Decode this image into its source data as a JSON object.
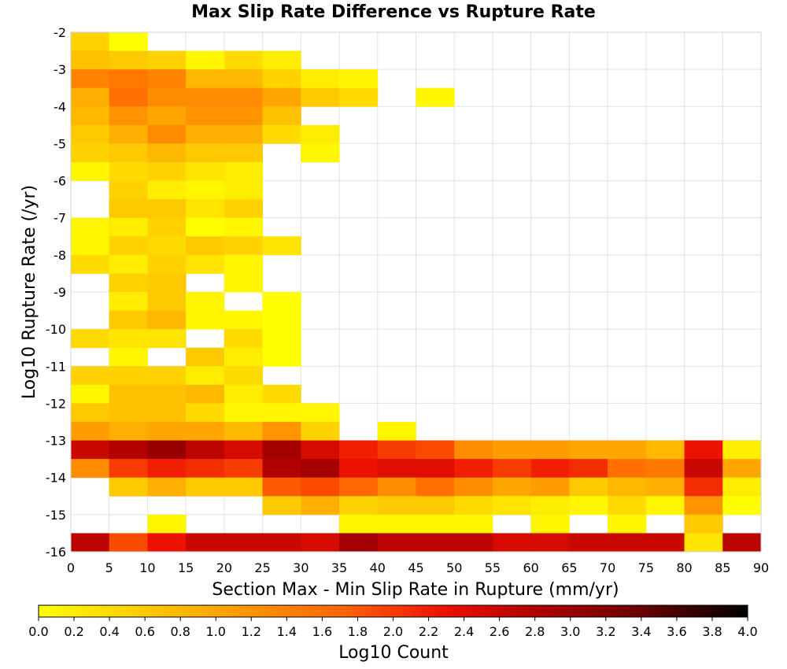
{
  "chart_data": {
    "type": "heatmap",
    "title": "Max Slip Rate Difference vs Rupture Rate",
    "xlabel": "Section Max - Min Slip Rate in Rupture (mm/yr)",
    "ylabel": "Log10 Rupture Rate (/yr)",
    "xlim": [
      0,
      90
    ],
    "ylim": [
      -16,
      -2
    ],
    "x_bin_width": 5,
    "y_bin_height": 0.5,
    "x_ticks": [
      "0",
      "5",
      "10",
      "15",
      "20",
      "25",
      "30",
      "35",
      "40",
      "45",
      "50",
      "55",
      "60",
      "65",
      "70",
      "75",
      "80",
      "85",
      "90"
    ],
    "y_ticks": [
      "-2",
      "-3",
      "-4",
      "-5",
      "-6",
      "-7",
      "-8",
      "-9",
      "-10",
      "-11",
      "-12",
      "-13",
      "-14",
      "-15",
      "-16"
    ],
    "grid": true,
    "colorbar": {
      "label": "Log10 Count",
      "range": [
        0.0,
        4.0
      ],
      "ticks": [
        "0.0",
        "0.2",
        "0.4",
        "0.6",
        "0.8",
        "1.0",
        "1.2",
        "1.4",
        "1.6",
        "1.8",
        "2.0",
        "2.2",
        "2.4",
        "2.6",
        "2.8",
        "3.0",
        "3.2",
        "3.4",
        "3.6",
        "3.8",
        "4.0"
      ],
      "colors": [
        "#ffff00",
        "#ffcc00",
        "#ff9900",
        "#ff6600",
        "#ee1100",
        "#aa0000",
        "#660000",
        "#000000"
      ],
      "placement": "bottom"
    },
    "cells": [
      {
        "x": 0,
        "y": -2.5,
        "v": 0.5
      },
      {
        "x": 0,
        "y": -3,
        "v": 0.7
      },
      {
        "x": 0,
        "y": -3.5,
        "v": 1.4
      },
      {
        "x": 0,
        "y": -4,
        "v": 0.9
      },
      {
        "x": 0,
        "y": -4.5,
        "v": 0.8
      },
      {
        "x": 0,
        "y": -5,
        "v": 0.6
      },
      {
        "x": 0,
        "y": -5.5,
        "v": 0.5
      },
      {
        "x": 0,
        "y": -6,
        "v": 0.1
      },
      {
        "x": 0,
        "y": -7.5,
        "v": 0.1
      },
      {
        "x": 0,
        "y": -8,
        "v": 0.1
      },
      {
        "x": 0,
        "y": -8.5,
        "v": 0.4
      },
      {
        "x": 0,
        "y": -10.5,
        "v": 0.4
      },
      {
        "x": 0,
        "y": -11.5,
        "v": 0.5
      },
      {
        "x": 0,
        "y": -12,
        "v": 0.1
      },
      {
        "x": 0,
        "y": -12.5,
        "v": 0.6
      },
      {
        "x": 0,
        "y": -13,
        "v": 1.1
      },
      {
        "x": 0,
        "y": -13.5,
        "v": 2.6
      },
      {
        "x": 0,
        "y": -14,
        "v": 1.3
      },
      {
        "x": 0,
        "y": -16,
        "v": 2.7
      },
      {
        "x": 5,
        "y": -2.5,
        "v": 0.0
      },
      {
        "x": 5,
        "y": -3,
        "v": 0.6
      },
      {
        "x": 5,
        "y": -3.5,
        "v": 1.5
      },
      {
        "x": 5,
        "y": -4,
        "v": 1.6
      },
      {
        "x": 5,
        "y": -4.5,
        "v": 1.2
      },
      {
        "x": 5,
        "y": -5,
        "v": 0.9
      },
      {
        "x": 5,
        "y": -5.5,
        "v": 0.6
      },
      {
        "x": 5,
        "y": -6,
        "v": 0.4
      },
      {
        "x": 5,
        "y": -6.5,
        "v": 0.5
      },
      {
        "x": 5,
        "y": -7,
        "v": 0.6
      },
      {
        "x": 5,
        "y": -7.5,
        "v": 0.2
      },
      {
        "x": 5,
        "y": -8,
        "v": 0.5
      },
      {
        "x": 5,
        "y": -8.5,
        "v": 0.2
      },
      {
        "x": 5,
        "y": -9,
        "v": 0.5
      },
      {
        "x": 5,
        "y": -9.5,
        "v": 0.2
      },
      {
        "x": 5,
        "y": -10,
        "v": 0.6
      },
      {
        "x": 5,
        "y": -10.5,
        "v": 0.3
      },
      {
        "x": 5,
        "y": -11,
        "v": 0.1
      },
      {
        "x": 5,
        "y": -11.5,
        "v": 0.5
      },
      {
        "x": 5,
        "y": -12,
        "v": 0.7
      },
      {
        "x": 5,
        "y": -12.5,
        "v": 0.7
      },
      {
        "x": 5,
        "y": -13,
        "v": 0.9
      },
      {
        "x": 5,
        "y": -13.5,
        "v": 2.8
      },
      {
        "x": 5,
        "y": -14,
        "v": 2.0
      },
      {
        "x": 5,
        "y": -14.5,
        "v": 0.6
      },
      {
        "x": 5,
        "y": -16,
        "v": 1.9
      },
      {
        "x": 10,
        "y": -3,
        "v": 0.5
      },
      {
        "x": 10,
        "y": -3.5,
        "v": 1.4
      },
      {
        "x": 10,
        "y": -4,
        "v": 1.3
      },
      {
        "x": 10,
        "y": -4.5,
        "v": 1.0
      },
      {
        "x": 10,
        "y": -5,
        "v": 1.3
      },
      {
        "x": 10,
        "y": -5.5,
        "v": 0.8
      },
      {
        "x": 10,
        "y": -6,
        "v": 0.5
      },
      {
        "x": 10,
        "y": -6.5,
        "v": 0.2
      },
      {
        "x": 10,
        "y": -7,
        "v": 0.6
      },
      {
        "x": 10,
        "y": -7.5,
        "v": 0.5
      },
      {
        "x": 10,
        "y": -8,
        "v": 0.4
      },
      {
        "x": 10,
        "y": -8.5,
        "v": 0.5
      },
      {
        "x": 10,
        "y": -9,
        "v": 0.6
      },
      {
        "x": 10,
        "y": -9.5,
        "v": 0.6
      },
      {
        "x": 10,
        "y": -10,
        "v": 0.8
      },
      {
        "x": 10,
        "y": -10.5,
        "v": 0.3
      },
      {
        "x": 10,
        "y": -11.5,
        "v": 0.5
      },
      {
        "x": 10,
        "y": -12,
        "v": 0.7
      },
      {
        "x": 10,
        "y": -12.5,
        "v": 0.7
      },
      {
        "x": 10,
        "y": -13,
        "v": 1.0
      },
      {
        "x": 10,
        "y": -13.5,
        "v": 3.0
      },
      {
        "x": 10,
        "y": -14,
        "v": 2.2
      },
      {
        "x": 10,
        "y": -14.5,
        "v": 0.9
      },
      {
        "x": 10,
        "y": -15.5,
        "v": 0.1
      },
      {
        "x": 10,
        "y": -16,
        "v": 2.3
      },
      {
        "x": 15,
        "y": -3,
        "v": 0.1
      },
      {
        "x": 15,
        "y": -3.5,
        "v": 0.8
      },
      {
        "x": 15,
        "y": -4,
        "v": 1.3
      },
      {
        "x": 15,
        "y": -4.5,
        "v": 1.2
      },
      {
        "x": 15,
        "y": -5,
        "v": 0.9
      },
      {
        "x": 15,
        "y": -5.5,
        "v": 0.6
      },
      {
        "x": 15,
        "y": -6,
        "v": 0.3
      },
      {
        "x": 15,
        "y": -6.5,
        "v": 0.1
      },
      {
        "x": 15,
        "y": -7,
        "v": 0.3
      },
      {
        "x": 15,
        "y": -7.5,
        "v": 0.0
      },
      {
        "x": 15,
        "y": -8,
        "v": 0.6
      },
      {
        "x": 15,
        "y": -8.5,
        "v": 0.3
      },
      {
        "x": 15,
        "y": -9.5,
        "v": 0.1
      },
      {
        "x": 15,
        "y": -10,
        "v": 0.1
      },
      {
        "x": 15,
        "y": -11,
        "v": 0.6
      },
      {
        "x": 15,
        "y": -11.5,
        "v": 0.2
      },
      {
        "x": 15,
        "y": -12,
        "v": 0.8
      },
      {
        "x": 15,
        "y": -12.5,
        "v": 0.4
      },
      {
        "x": 15,
        "y": -13,
        "v": 1.0
      },
      {
        "x": 15,
        "y": -13.5,
        "v": 2.7
      },
      {
        "x": 15,
        "y": -14,
        "v": 2.1
      },
      {
        "x": 15,
        "y": -14.5,
        "v": 0.6
      },
      {
        "x": 15,
        "y": -16,
        "v": 2.6
      },
      {
        "x": 20,
        "y": -3,
        "v": 0.4
      },
      {
        "x": 20,
        "y": -3.5,
        "v": 0.8
      },
      {
        "x": 20,
        "y": -4,
        "v": 1.3
      },
      {
        "x": 20,
        "y": -4.5,
        "v": 1.2
      },
      {
        "x": 20,
        "y": -5,
        "v": 0.9
      },
      {
        "x": 20,
        "y": -5.5,
        "v": 0.6
      },
      {
        "x": 20,
        "y": -6,
        "v": 0.2
      },
      {
        "x": 20,
        "y": -6.5,
        "v": 0.2
      },
      {
        "x": 20,
        "y": -7,
        "v": 0.5
      },
      {
        "x": 20,
        "y": -7.5,
        "v": 0.1
      },
      {
        "x": 20,
        "y": -8,
        "v": 0.5
      },
      {
        "x": 20,
        "y": -8.5,
        "v": 0.1
      },
      {
        "x": 20,
        "y": -9,
        "v": 0.1
      },
      {
        "x": 20,
        "y": -10,
        "v": 0.1
      },
      {
        "x": 20,
        "y": -10.5,
        "v": 0.4
      },
      {
        "x": 20,
        "y": -11,
        "v": 0.2
      },
      {
        "x": 20,
        "y": -11.5,
        "v": 0.4
      },
      {
        "x": 20,
        "y": -12,
        "v": 0.2
      },
      {
        "x": 20,
        "y": -12.5,
        "v": 0.1
      },
      {
        "x": 20,
        "y": -13,
        "v": 0.8
      },
      {
        "x": 20,
        "y": -13.5,
        "v": 2.5
      },
      {
        "x": 20,
        "y": -14,
        "v": 2.0
      },
      {
        "x": 20,
        "y": -14.5,
        "v": 0.6
      },
      {
        "x": 20,
        "y": -16,
        "v": 2.6
      },
      {
        "x": 25,
        "y": -3,
        "v": 0.2
      },
      {
        "x": 25,
        "y": -3.5,
        "v": 0.5
      },
      {
        "x": 25,
        "y": -4,
        "v": 1.0
      },
      {
        "x": 25,
        "y": -4.5,
        "v": 0.7
      },
      {
        "x": 25,
        "y": -5,
        "v": 0.4
      },
      {
        "x": 25,
        "y": -8,
        "v": 0.3
      },
      {
        "x": 25,
        "y": -9.5,
        "v": 0.0
      },
      {
        "x": 25,
        "y": -10,
        "v": 0.0
      },
      {
        "x": 25,
        "y": -10.5,
        "v": 0.0
      },
      {
        "x": 25,
        "y": -11,
        "v": 0.0
      },
      {
        "x": 25,
        "y": -12,
        "v": 0.4
      },
      {
        "x": 25,
        "y": -12.5,
        "v": 0.1
      },
      {
        "x": 25,
        "y": -13,
        "v": 1.2
      },
      {
        "x": 25,
        "y": -13.5,
        "v": 2.9
      },
      {
        "x": 25,
        "y": -14,
        "v": 2.8
      },
      {
        "x": 25,
        "y": -14.5,
        "v": 1.8
      },
      {
        "x": 25,
        "y": -15,
        "v": 0.6
      },
      {
        "x": 25,
        "y": -16,
        "v": 2.6
      },
      {
        "x": 30,
        "y": -3.5,
        "v": 0.2
      },
      {
        "x": 30,
        "y": -4,
        "v": 0.6
      },
      {
        "x": 30,
        "y": -5,
        "v": 0.2
      },
      {
        "x": 30,
        "y": -5.5,
        "v": 0.1
      },
      {
        "x": 30,
        "y": -12.5,
        "v": 0.1
      },
      {
        "x": 30,
        "y": -13,
        "v": 0.5
      },
      {
        "x": 30,
        "y": -13.5,
        "v": 2.5
      },
      {
        "x": 30,
        "y": -14,
        "v": 2.9
      },
      {
        "x": 30,
        "y": -14.5,
        "v": 1.9
      },
      {
        "x": 30,
        "y": -15,
        "v": 0.9
      },
      {
        "x": 30,
        "y": -16,
        "v": 2.5
      },
      {
        "x": 35,
        "y": -3.5,
        "v": 0.1
      },
      {
        "x": 35,
        "y": -4,
        "v": 0.4
      },
      {
        "x": 35,
        "y": -13.5,
        "v": 2.2
      },
      {
        "x": 35,
        "y": -14,
        "v": 2.3
      },
      {
        "x": 35,
        "y": -14.5,
        "v": 1.7
      },
      {
        "x": 35,
        "y": -15,
        "v": 0.5
      },
      {
        "x": 35,
        "y": -15.5,
        "v": 0.1
      },
      {
        "x": 35,
        "y": -16,
        "v": 2.9
      },
      {
        "x": 40,
        "y": -13,
        "v": 0.1
      },
      {
        "x": 40,
        "y": -13.5,
        "v": 2.0
      },
      {
        "x": 40,
        "y": -14,
        "v": 2.4
      },
      {
        "x": 40,
        "y": -14.5,
        "v": 1.3
      },
      {
        "x": 40,
        "y": -15,
        "v": 0.6
      },
      {
        "x": 40,
        "y": -15.5,
        "v": 0.1
      },
      {
        "x": 40,
        "y": -16,
        "v": 2.7
      },
      {
        "x": 45,
        "y": -4,
        "v": 0.1
      },
      {
        "x": 45,
        "y": -13.5,
        "v": 1.9
      },
      {
        "x": 45,
        "y": -14,
        "v": 2.4
      },
      {
        "x": 45,
        "y": -14.5,
        "v": 1.6
      },
      {
        "x": 45,
        "y": -15,
        "v": 0.6
      },
      {
        "x": 45,
        "y": -15.5,
        "v": 0.1
      },
      {
        "x": 45,
        "y": -16,
        "v": 2.7
      },
      {
        "x": 50,
        "y": -13.5,
        "v": 1.3
      },
      {
        "x": 50,
        "y": -14,
        "v": 2.2
      },
      {
        "x": 50,
        "y": -14.5,
        "v": 1.3
      },
      {
        "x": 50,
        "y": -15,
        "v": 0.4
      },
      {
        "x": 50,
        "y": -15.5,
        "v": 0.1
      },
      {
        "x": 50,
        "y": -16,
        "v": 2.7
      },
      {
        "x": 55,
        "y": -13.5,
        "v": 1.1
      },
      {
        "x": 55,
        "y": -14,
        "v": 2.0
      },
      {
        "x": 55,
        "y": -14.5,
        "v": 1.0
      },
      {
        "x": 55,
        "y": -15,
        "v": 0.3
      },
      {
        "x": 55,
        "y": -16,
        "v": 2.5
      },
      {
        "x": 60,
        "y": -13.5,
        "v": 1.1
      },
      {
        "x": 60,
        "y": -14,
        "v": 2.2
      },
      {
        "x": 60,
        "y": -14.5,
        "v": 1.1
      },
      {
        "x": 60,
        "y": -15,
        "v": 0.2
      },
      {
        "x": 60,
        "y": -15.5,
        "v": 0.1
      },
      {
        "x": 60,
        "y": -16,
        "v": 2.5
      },
      {
        "x": 65,
        "y": -13.5,
        "v": 1.0
      },
      {
        "x": 65,
        "y": -14,
        "v": 2.1
      },
      {
        "x": 65,
        "y": -14.5,
        "v": 0.6
      },
      {
        "x": 65,
        "y": -15,
        "v": 0.1
      },
      {
        "x": 65,
        "y": -16,
        "v": 2.6
      },
      {
        "x": 70,
        "y": -13.5,
        "v": 1.0
      },
      {
        "x": 70,
        "y": -14,
        "v": 1.6
      },
      {
        "x": 70,
        "y": -14.5,
        "v": 0.8
      },
      {
        "x": 70,
        "y": -15,
        "v": 0.4
      },
      {
        "x": 70,
        "y": -15.5,
        "v": 0.1
      },
      {
        "x": 70,
        "y": -16,
        "v": 2.6
      },
      {
        "x": 75,
        "y": -13.5,
        "v": 0.8
      },
      {
        "x": 75,
        "y": -14,
        "v": 1.5
      },
      {
        "x": 75,
        "y": -14.5,
        "v": 0.9
      },
      {
        "x": 75,
        "y": -15,
        "v": 0.1
      },
      {
        "x": 75,
        "y": -16,
        "v": 2.6
      },
      {
        "x": 80,
        "y": -13.5,
        "v": 2.3
      },
      {
        "x": 80,
        "y": -14,
        "v": 2.6
      },
      {
        "x": 80,
        "y": -14.5,
        "v": 2.1
      },
      {
        "x": 80,
        "y": -15,
        "v": 1.2
      },
      {
        "x": 80,
        "y": -15.5,
        "v": 0.6
      },
      {
        "x": 80,
        "y": -16,
        "v": 0.3
      },
      {
        "x": 85,
        "y": -13.5,
        "v": 0.2
      },
      {
        "x": 85,
        "y": -14,
        "v": 1.0
      },
      {
        "x": 85,
        "y": -14.5,
        "v": 0.2
      },
      {
        "x": 85,
        "y": -15,
        "v": 0.0
      },
      {
        "x": 85,
        "y": -16,
        "v": 2.7
      }
    ]
  }
}
